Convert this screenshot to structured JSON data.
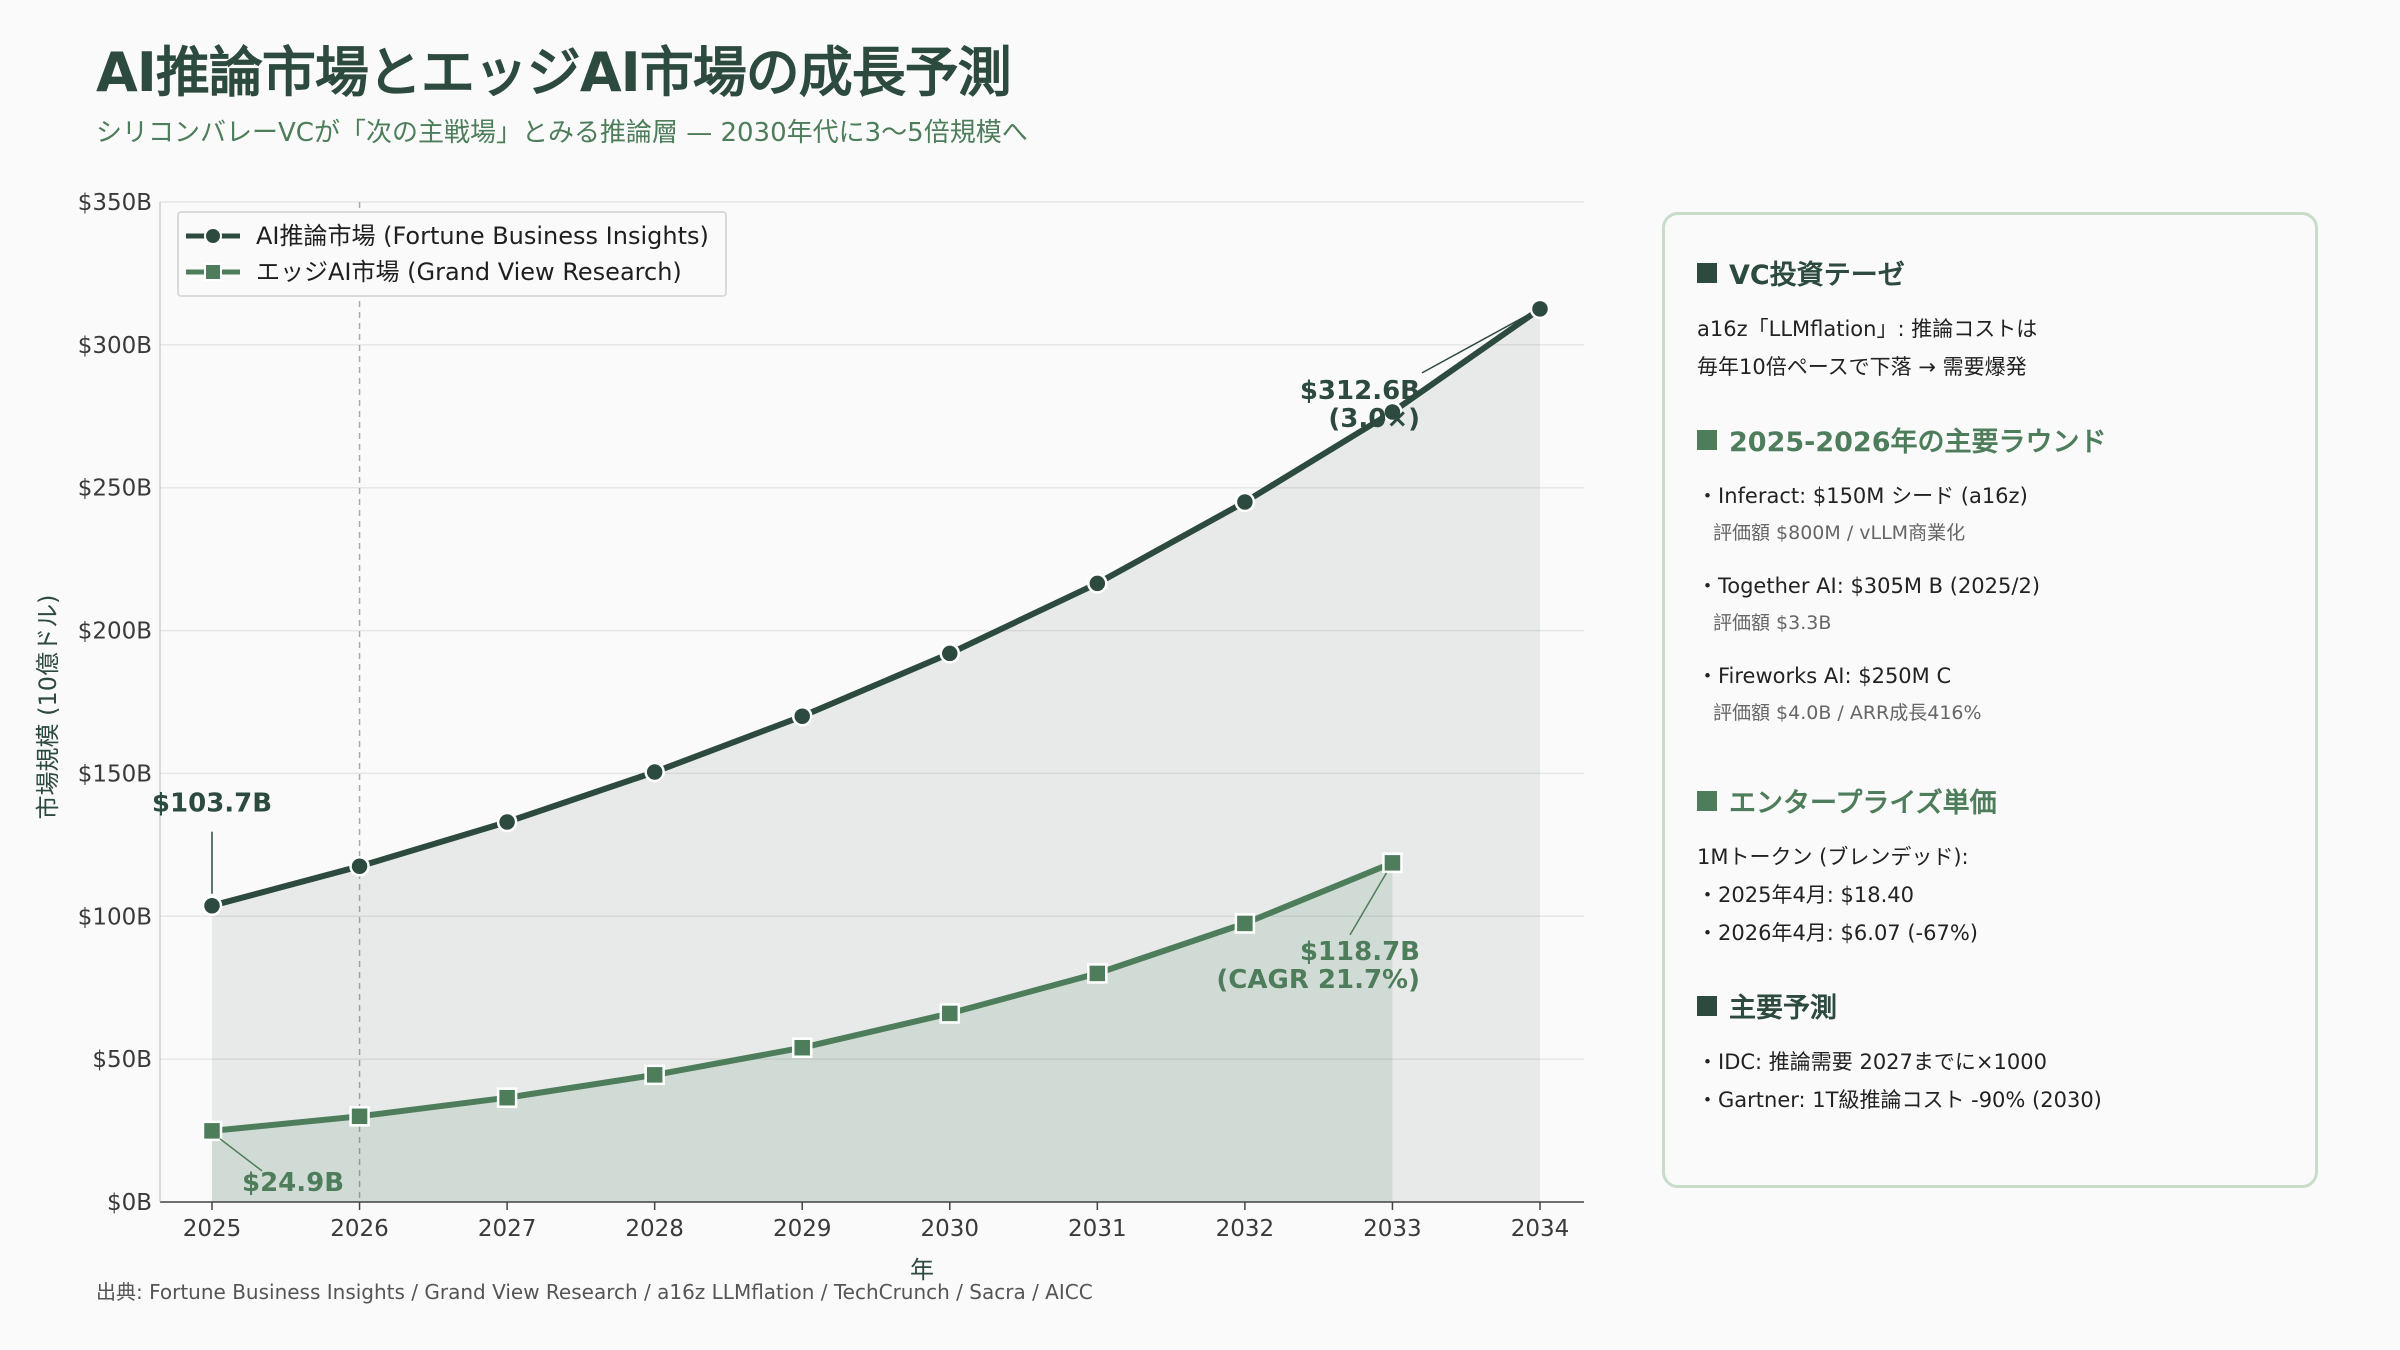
{
  "header": {
    "title": "AI推論市場とエッジAI市場の成長予測",
    "subtitle": "シリコンバレーVCが「次の主戦場」とみる推論層 — 2030年代に3〜5倍規模へ"
  },
  "chart_data": {
    "type": "line",
    "xlabel": "年",
    "ylabel": "市場規模 (10億ドル)",
    "ylim": [
      0,
      350
    ],
    "xlim": [
      2025,
      2034
    ],
    "x_ticks": [
      "2025",
      "2026",
      "2027",
      "2028",
      "2029",
      "2030",
      "2031",
      "2032",
      "2033",
      "2034"
    ],
    "y_ticks": [
      "$0B",
      "$50B",
      "$100B",
      "$150B",
      "$200B",
      "$250B",
      "$300B",
      "$350B"
    ],
    "grid": true,
    "legend_position": "top-left",
    "reference_line_x": 2026,
    "series": [
      {
        "name": "AI推論市場 (Fortune Business Insights)",
        "marker": "circle",
        "color": "#2d4a3e",
        "x": [
          2025,
          2026,
          2027,
          2028,
          2029,
          2030,
          2031,
          2032,
          2033,
          2034
        ],
        "values": [
          103.7,
          117.5,
          133,
          150.5,
          170,
          192,
          216.5,
          245,
          276.5,
          312.6
        ]
      },
      {
        "name": "エッジAI市場 (Grand View Research)",
        "marker": "square",
        "color": "#4e7d5b",
        "x": [
          2025,
          2026,
          2027,
          2028,
          2029,
          2030,
          2031,
          2032,
          2033
        ],
        "values": [
          24.9,
          30,
          36.5,
          44.5,
          54,
          66,
          80,
          97.5,
          118.7
        ]
      }
    ],
    "annotations": [
      {
        "text": "$103.7B",
        "style": "dark"
      },
      {
        "text": "$312.6B",
        "text2": "(3.0×)",
        "style": "dark"
      },
      {
        "text": "$118.7B",
        "text2": "(CAGR 21.7%)",
        "style": "green"
      },
      {
        "text": "$24.9B",
        "style": "green"
      }
    ]
  },
  "source": "出典: Fortune Business Insights / Grand View Research / a16z LLMflation / TechCrunch / Sacra / AICC",
  "panel": {
    "sec1": {
      "heading": "VC投資テーゼ",
      "line1": "a16z「LLMflation」: 推論コストは",
      "line2": "毎年10倍ペースで下落 → 需要爆発"
    },
    "sec2": {
      "heading": "2025-2026年の主要ラウンド",
      "r1": "・Inferact: $150M シード (a16z)",
      "r1_sub": "評価額 $800M / vLLM商業化",
      "r2": "・Together AI: $305M B (2025/2)",
      "r2_sub": "評価額 $3.3B",
      "r3": "・Fireworks AI: $250M C",
      "r3_sub": "評価額 $4.0B / ARR成長416%"
    },
    "sec3": {
      "heading": "エンタープライズ単価",
      "line1": "1Mトークン (ブレンデッド):",
      "line2": "・2025年4月: $18.40",
      "line3": "・2026年4月: $6.07 (-67%)"
    },
    "sec4": {
      "heading": "主要予測",
      "line1": "・IDC: 推論需要 2027までに×1000",
      "line2": "・Gartner: 1T級推論コスト -90% (2030)"
    }
  }
}
